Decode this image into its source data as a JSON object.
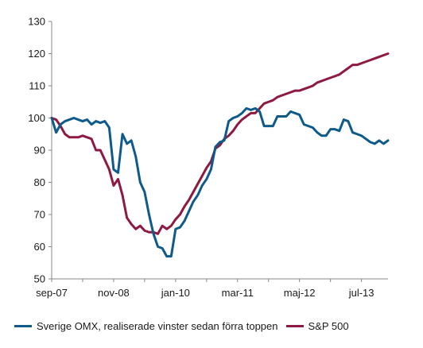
{
  "chart_data": {
    "type": "line",
    "x_tick_labels": [
      "sep-07",
      "nov-08",
      "jan-10",
      "mar-11",
      "maj-12",
      "jul-13"
    ],
    "x_tick_indices": [
      0,
      14,
      28,
      42,
      56,
      70
    ],
    "ylim": [
      50,
      130
    ],
    "y_ticks": [
      50,
      60,
      70,
      80,
      90,
      100,
      110,
      120,
      130
    ],
    "grid": false,
    "legend_position": "bottom",
    "series": [
      {
        "name": "Sverige OMX, realiserade vinster sedan förra toppen",
        "color": "#0e5a8a",
        "values": [
          100,
          95.5,
          98,
          99,
          99.5,
          100,
          99.5,
          99,
          99.5,
          98,
          99,
          98.5,
          99,
          97,
          84,
          83,
          95,
          92,
          93,
          88,
          80,
          77,
          70,
          64,
          60,
          59.5,
          57,
          57,
          65.5,
          66,
          68,
          71,
          74,
          76,
          79,
          81,
          84,
          91,
          92.5,
          93,
          99,
          100,
          100.5,
          101.5,
          103,
          102.5,
          103,
          102,
          97.5,
          97.5,
          97.5,
          100.5,
          100.5,
          100.5,
          102,
          101.5,
          101,
          98,
          97.5,
          97,
          95.5,
          94.5,
          94.5,
          96.5,
          96.5,
          96,
          99.5,
          99,
          95.5,
          95,
          94.5,
          93.5,
          92.5,
          92,
          93,
          92,
          93
        ]
      },
      {
        "name": "S&P 500",
        "color": "#8e1a3f",
        "values": [
          100,
          99.5,
          97.5,
          95,
          94,
          94,
          94,
          94.5,
          94,
          93.5,
          90,
          90,
          87,
          84,
          79,
          81,
          76,
          69,
          67,
          65.5,
          66.5,
          65,
          64.5,
          64.5,
          64,
          66.5,
          65.5,
          66.5,
          68.5,
          70,
          72.5,
          74.5,
          77,
          79.5,
          82,
          84.5,
          86.5,
          90.5,
          91.5,
          93.5,
          94.5,
          96,
          98,
          99.5,
          100.5,
          101.5,
          101.5,
          103,
          104.5,
          105,
          105.5,
          106.5,
          107,
          107.5,
          108,
          108.5,
          108.5,
          109,
          109.5,
          110,
          111,
          111.5,
          112,
          112.5,
          113,
          113.5,
          114.5,
          115.5,
          116.5,
          116.5,
          117,
          117.5,
          118,
          118.5,
          119,
          119.5,
          120
        ]
      }
    ]
  }
}
